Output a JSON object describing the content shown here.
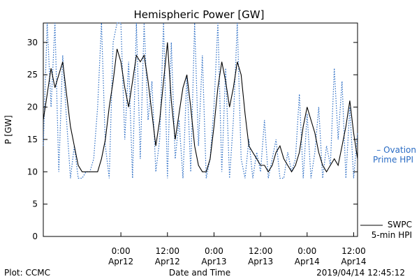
{
  "chart_data": {
    "type": "line",
    "title": "Hemispheric Power [GW]",
    "xlabel": "Date and Time",
    "ylabel": "P [GW]",
    "ylim": [
      0,
      33
    ],
    "xlim": [
      "2019-04-11 04:00",
      "2019-04-14 13:00"
    ],
    "yticks": [
      "0",
      "5",
      "10",
      "15",
      "20",
      "25",
      "30"
    ],
    "xticks": [
      {
        "x": "2019-04-12 00:00",
        "line1": "0:00",
        "line2": "Apr12"
      },
      {
        "x": "2019-04-12 12:00",
        "line1": "12:00",
        "line2": "Apr12"
      },
      {
        "x": "2019-04-13 00:00",
        "line1": "0:00",
        "line2": "Apr13"
      },
      {
        "x": "2019-04-13 12:00",
        "line1": "12:00",
        "line2": "Apr13"
      },
      {
        "x": "2019-04-14 00:00",
        "line1": "0:00",
        "line2": "Apr14"
      },
      {
        "x": "2019-04-14 12:00",
        "line1": "12:00",
        "line2": "Apr14"
      }
    ],
    "grid": false,
    "legend": "right",
    "series": [
      {
        "name": "SWPC 5-min HPI",
        "legend_line1": "SWPC",
        "legend_line2": "5-min HPI",
        "color": "#000000",
        "style": "solid",
        "x": [
          "2019-04-11 04:00",
          "2019-04-11 05:00",
          "2019-04-11 06:00",
          "2019-04-11 07:00",
          "2019-04-11 08:00",
          "2019-04-11 09:00",
          "2019-04-11 10:00",
          "2019-04-11 11:00",
          "2019-04-11 12:00",
          "2019-04-11 13:00",
          "2019-04-11 14:00",
          "2019-04-11 15:00",
          "2019-04-11 16:00",
          "2019-04-11 17:00",
          "2019-04-11 18:00",
          "2019-04-11 19:00",
          "2019-04-11 20:00",
          "2019-04-11 21:00",
          "2019-04-11 22:00",
          "2019-04-11 23:00",
          "2019-04-12 00:00",
          "2019-04-12 01:00",
          "2019-04-12 02:00",
          "2019-04-12 03:00",
          "2019-04-12 04:00",
          "2019-04-12 05:00",
          "2019-04-12 06:00",
          "2019-04-12 07:00",
          "2019-04-12 08:00",
          "2019-04-12 09:00",
          "2019-04-12 10:00",
          "2019-04-12 11:00",
          "2019-04-12 12:00",
          "2019-04-12 13:00",
          "2019-04-12 14:00",
          "2019-04-12 15:00",
          "2019-04-12 16:00",
          "2019-04-12 17:00",
          "2019-04-12 18:00",
          "2019-04-12 19:00",
          "2019-04-12 20:00",
          "2019-04-12 21:00",
          "2019-04-12 22:00",
          "2019-04-12 23:00",
          "2019-04-13 00:00",
          "2019-04-13 01:00",
          "2019-04-13 02:00",
          "2019-04-13 03:00",
          "2019-04-13 04:00",
          "2019-04-13 05:00",
          "2019-04-13 06:00",
          "2019-04-13 07:00",
          "2019-04-13 08:00",
          "2019-04-13 09:00",
          "2019-04-13 10:00",
          "2019-04-13 11:00",
          "2019-04-13 12:00",
          "2019-04-13 13:00",
          "2019-04-13 14:00",
          "2019-04-13 15:00",
          "2019-04-13 16:00",
          "2019-04-13 17:00",
          "2019-04-13 18:00",
          "2019-04-13 19:00",
          "2019-04-13 20:00",
          "2019-04-13 21:00",
          "2019-04-13 22:00",
          "2019-04-13 23:00",
          "2019-04-14 00:00",
          "2019-04-14 01:00",
          "2019-04-14 02:00",
          "2019-04-14 03:00",
          "2019-04-14 04:00",
          "2019-04-14 05:00",
          "2019-04-14 06:00",
          "2019-04-14 07:00",
          "2019-04-14 08:00",
          "2019-04-14 09:00",
          "2019-04-14 10:00",
          "2019-04-14 11:00",
          "2019-04-14 12:00",
          "2019-04-14 13:00"
        ],
        "y": [
          18,
          22,
          26,
          23,
          25,
          27,
          22,
          17,
          14,
          11,
          10,
          10,
          10,
          10,
          10,
          12,
          15,
          20,
          24,
          29,
          27,
          23,
          20,
          24,
          28,
          27,
          28,
          24,
          19,
          14,
          18,
          24,
          30,
          21,
          15,
          19,
          23,
          25,
          20,
          14,
          11,
          10,
          10,
          12,
          17,
          23,
          27,
          24,
          20,
          23,
          27,
          25,
          19,
          14,
          13,
          12,
          11,
          11,
          10,
          11,
          13,
          14,
          12,
          11,
          10,
          11,
          13,
          17,
          20,
          18,
          16,
          13,
          11,
          10,
          11,
          12,
          11,
          14,
          17,
          21,
          16,
          12
        ]
      },
      {
        "name": "Ovation Prime HPI",
        "legend_line1": "– Ovation",
        "legend_line2": "Prime HPI",
        "color": "#2a6cc4",
        "style": "dotted",
        "x": [
          "2019-04-11 04:00",
          "2019-04-11 05:00",
          "2019-04-11 06:00",
          "2019-04-11 07:00",
          "2019-04-11 08:00",
          "2019-04-11 09:00",
          "2019-04-11 10:00",
          "2019-04-11 11:00",
          "2019-04-11 12:00",
          "2019-04-11 13:00",
          "2019-04-11 14:00",
          "2019-04-11 15:00",
          "2019-04-11 16:00",
          "2019-04-11 17:00",
          "2019-04-11 18:00",
          "2019-04-11 19:00",
          "2019-04-11 20:00",
          "2019-04-11 21:00",
          "2019-04-11 22:00",
          "2019-04-11 23:00",
          "2019-04-12 00:00",
          "2019-04-12 01:00",
          "2019-04-12 02:00",
          "2019-04-12 03:00",
          "2019-04-12 04:00",
          "2019-04-12 05:00",
          "2019-04-12 06:00",
          "2019-04-12 07:00",
          "2019-04-12 08:00",
          "2019-04-12 09:00",
          "2019-04-12 10:00",
          "2019-04-12 11:00",
          "2019-04-12 12:00",
          "2019-04-12 13:00",
          "2019-04-12 14:00",
          "2019-04-12 15:00",
          "2019-04-12 16:00",
          "2019-04-12 17:00",
          "2019-04-12 18:00",
          "2019-04-12 19:00",
          "2019-04-12 20:00",
          "2019-04-12 21:00",
          "2019-04-12 22:00",
          "2019-04-12 23:00",
          "2019-04-13 00:00",
          "2019-04-13 01:00",
          "2019-04-13 02:00",
          "2019-04-13 03:00",
          "2019-04-13 04:00",
          "2019-04-13 05:00",
          "2019-04-13 06:00",
          "2019-04-13 07:00",
          "2019-04-13 08:00",
          "2019-04-13 09:00",
          "2019-04-13 10:00",
          "2019-04-13 11:00",
          "2019-04-13 12:00",
          "2019-04-13 13:00",
          "2019-04-13 14:00",
          "2019-04-13 15:00",
          "2019-04-13 16:00",
          "2019-04-13 17:00",
          "2019-04-13 18:00",
          "2019-04-13 19:00",
          "2019-04-13 20:00",
          "2019-04-13 21:00",
          "2019-04-13 22:00",
          "2019-04-13 23:00",
          "2019-04-14 00:00",
          "2019-04-14 01:00",
          "2019-04-14 02:00",
          "2019-04-14 03:00",
          "2019-04-14 04:00",
          "2019-04-14 05:00",
          "2019-04-14 06:00",
          "2019-04-14 07:00",
          "2019-04-14 08:00",
          "2019-04-14 09:00",
          "2019-04-14 10:00",
          "2019-04-14 11:00",
          "2019-04-14 12:00",
          "2019-04-14 13:00"
        ],
        "y": [
          14,
          33,
          20,
          33,
          10,
          28,
          18,
          9,
          14,
          9,
          9,
          10,
          10,
          12,
          20,
          33,
          14,
          9,
          30,
          33,
          33,
          15,
          27,
          9,
          33,
          12,
          33,
          18,
          24,
          10,
          15,
          33,
          9,
          30,
          12,
          18,
          9,
          25,
          10,
          33,
          14,
          28,
          9,
          12,
          20,
          33,
          10,
          26,
          9,
          18,
          33,
          12,
          9,
          15,
          9,
          13,
          10,
          18,
          9,
          12,
          15,
          9,
          9,
          13,
          10,
          12,
          22,
          9,
          19,
          9,
          13,
          20,
          9,
          14,
          11,
          26,
          15,
          24,
          9,
          20,
          9,
          16
        ]
      }
    ]
  },
  "footer": {
    "left": "Plot: CCMC",
    "center": "Date and Time",
    "right": "2019/04/14 12:45:12"
  }
}
